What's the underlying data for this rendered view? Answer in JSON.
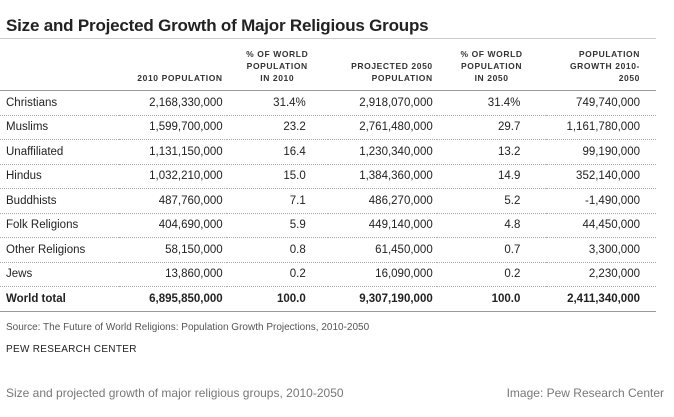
{
  "title": "Size and Projected Growth of Major Religious Groups",
  "table": {
    "headers": [
      "",
      "2010 POPULATION",
      "% OF WORLD\nPOPULATION\nIN 2010",
      "PROJECTED 2050\nPOPULATION",
      "% OF WORLD\nPOPULATION\nIN 2050",
      "POPULATION\nGROWTH 2010-\n2050"
    ],
    "rows": [
      [
        "Christians",
        "2,168,330,000",
        "31.4%",
        "2,918,070,000",
        "31.4%",
        "749,740,000"
      ],
      [
        "Muslims",
        "1,599,700,000",
        "23.2",
        "2,761,480,000",
        "29.7",
        "1,161,780,000"
      ],
      [
        "Unaffiliated",
        "1,131,150,000",
        "16.4",
        "1,230,340,000",
        "13.2",
        "99,190,000"
      ],
      [
        "Hindus",
        "1,032,210,000",
        "15.0",
        "1,384,360,000",
        "14.9",
        "352,140,000"
      ],
      [
        "Buddhists",
        "487,760,000",
        "7.1",
        "486,270,000",
        "5.2",
        "-1,490,000"
      ],
      [
        "Folk Religions",
        "404,690,000",
        "5.9",
        "449,140,000",
        "4.8",
        "44,450,000"
      ],
      [
        "Other Religions",
        "58,150,000",
        "0.8",
        "61,450,000",
        "0.7",
        "3,300,000"
      ],
      [
        "Jews",
        "13,860,000",
        "0.2",
        "16,090,000",
        "0.2",
        "2,230,000"
      ]
    ],
    "total": [
      "World total",
      "6,895,850,000",
      "100.0",
      "9,307,190,000",
      "100.0",
      "2,411,340,000"
    ]
  },
  "source": "Source: The Future of World Religions: Population Growth Projections, 2010-2050",
  "org": "PEW RESEARCH CENTER",
  "caption": "Size and projected growth of major religious groups, 2010-2050",
  "credit": "Image: Pew Research Center"
}
